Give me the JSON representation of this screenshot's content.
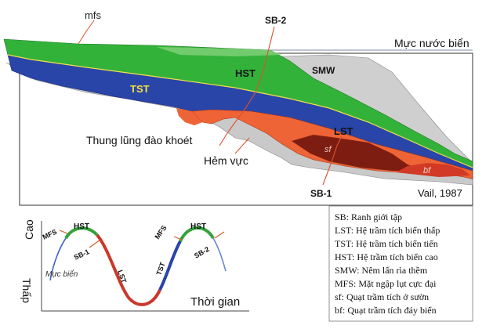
{
  "cross_section": {
    "labels": {
      "mfs": "mfs",
      "sb2": "SB-2",
      "sea_level": "Mực nước biển",
      "hst": "HST",
      "smw": "SMW",
      "tst": "TST",
      "lst": "LST",
      "valley": "Thung lũng đào khoét",
      "canyon": "Hẻm vực",
      "sf": "sf",
      "bf": "bf",
      "sb1": "SB-1",
      "citation": "Vail, 1987"
    },
    "colors": {
      "green": "#33b23a",
      "blue": "#2a45a8",
      "orange": "#ee6436",
      "darkred": "#7d1d12",
      "red": "#d23a27",
      "grey": "#c9c9c9",
      "yellow_text": "#f2e23b"
    }
  },
  "sea_level_curve": {
    "axis_high": "Cao",
    "axis_low": "Thấp",
    "axis_time": "Thời gian",
    "labels": {
      "hst_left": "HST",
      "mfs_left": "MFS",
      "sb1": "SB-1",
      "sea_level": "Mực biển",
      "lst": "LST",
      "tst": "TST",
      "mfs_right": "MFS",
      "hst_right": "HST",
      "sb2": "SB-2"
    }
  },
  "legend": {
    "items": [
      "SB: Ranh giới tập",
      "LST: Hệ trầm tích biển thấp",
      "TST: Hệ trầm tích biển tiến",
      "HST: Hệ trầm tích biển cao",
      "SMW: Nêm lấn rìa thềm",
      "MFS: Mặt ngập lụt cực đại",
      "sf: Quạt trầm tích ở sườn",
      "bf: Quạt trầm tích đáy biển"
    ]
  }
}
